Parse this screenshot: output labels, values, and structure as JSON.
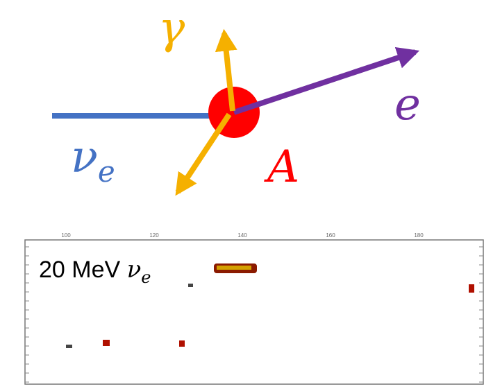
{
  "diagram": {
    "labels": {
      "gamma": "γ",
      "electron": "e",
      "neutrino": "ν",
      "neutrino_sub": "e",
      "nucleus": "A"
    }
  },
  "event_display": {
    "label": "20 MeV ",
    "label_nu": "ν",
    "label_sub": "e",
    "top_ticks": [
      "100",
      "120",
      "140",
      "160",
      "180"
    ]
  }
}
